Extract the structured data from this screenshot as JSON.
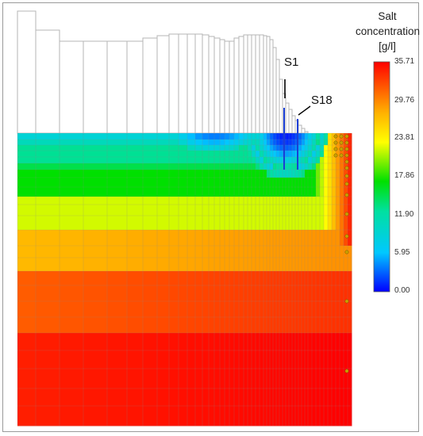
{
  "legend": {
    "title_line1": "Salt",
    "title_line2": "concentration",
    "title_line3": "[g/l]",
    "ticks": [
      "35.71",
      "29.76",
      "23.81",
      "17.86",
      "11.90",
      "5.95",
      "0.00"
    ],
    "colors": [
      "#0000ff",
      "#00c8ff",
      "#00e000",
      "#ffff00",
      "#ffb000",
      "#ff5000",
      "#ff0000"
    ]
  },
  "wells": [
    {
      "label": "S1"
    },
    {
      "label": "S18"
    }
  ],
  "colors": {
    "frame": "#9a9a9a",
    "grid_line": "#b5b5b5",
    "well_line": "#1a3fd6",
    "node_marker": "#c8a000"
  }
}
